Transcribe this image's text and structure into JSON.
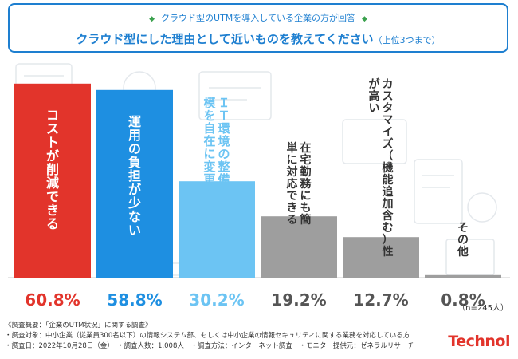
{
  "header": {
    "subtitle": "クラウド型のUTMを導入している企業の方が回答",
    "title_main": "クラウド型にした理由として近いものを教えてください",
    "title_note": "（上位3つまで）"
  },
  "chart_data": {
    "type": "bar",
    "categories": [
      "コストが削減できる",
      "運用の負担が少ない",
      "ＩＴ環境の整備や規模を自在に変更できる",
      "在宅勤務にも簡単に対応できる",
      "カスタマイズ（機能追加含む）性が高い",
      "その他"
    ],
    "values": [
      60.8,
      58.8,
      30.2,
      19.2,
      12.7,
      0.8
    ],
    "value_labels": [
      "60.8%",
      "58.8%",
      "30.2%",
      "19.2%",
      "12.7%",
      "0.8%"
    ],
    "bar_colors": [
      "#e2342b",
      "#1e8fe1",
      "#6cc4f3",
      "#9e9e9e",
      "#9e9e9e",
      "#9e9e9e"
    ],
    "value_colors": [
      "#e2342b",
      "#1e8fe1",
      "#6cc4f3",
      "#555555",
      "#555555",
      "#555555"
    ],
    "ylim": [
      0,
      62
    ],
    "grid": false,
    "legend": "none",
    "sample_note": "（n=245人）"
  },
  "footer": {
    "line1": "《調査概要：「企業のUTM状況」に関する調査》",
    "line2": "・調査対象：中小企業（従業員300名以下）の情報システム部、もしくは中小企業の情報セキュリティに関する業務を対応している方",
    "line3": "・調査日：2022年10月28日（金）　・調査人数：1,008人　・調査方法：インターネット調査　・モニター提供元：ゼネラルリサーチ"
  },
  "brand": "Technol"
}
